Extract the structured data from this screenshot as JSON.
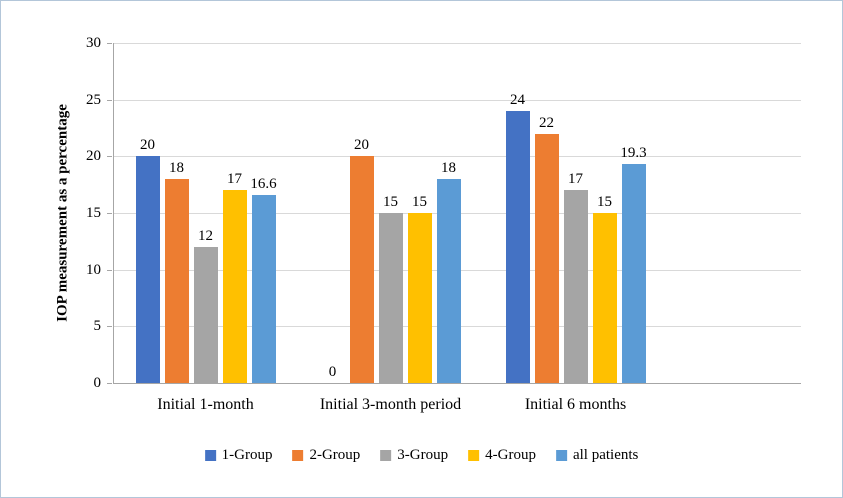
{
  "chart_data": {
    "type": "bar",
    "title": "",
    "xlabel": "",
    "ylabel": "IOP measurement as a percentage",
    "ylim": [
      0,
      30
    ],
    "yticks": [
      0,
      5,
      10,
      15,
      20,
      25,
      30
    ],
    "grid": true,
    "legend_position": "bottom",
    "categories": [
      "Initial 1-month",
      "Initial 3-month period",
      "Initial 6 months"
    ],
    "series": [
      {
        "name": "1-Group",
        "color": "#4472c4",
        "values": [
          20,
          0,
          24
        ]
      },
      {
        "name": "2-Group",
        "color": "#ed7d31",
        "values": [
          18,
          20,
          22
        ]
      },
      {
        "name": "3-Group",
        "color": "#a5a5a5",
        "values": [
          12,
          15,
          17
        ]
      },
      {
        "name": "4-Group",
        "color": "#ffc000",
        "values": [
          17,
          15,
          15
        ]
      },
      {
        "name": "all patients",
        "color": "#5b9bd5",
        "values": [
          16.6,
          18,
          19.3
        ]
      }
    ],
    "data_labels": [
      [
        "20",
        "0",
        "24"
      ],
      [
        "18",
        "20",
        "22"
      ],
      [
        "12",
        "15",
        "17"
      ],
      [
        "17",
        "15",
        "15"
      ],
      [
        "16.6",
        "18",
        "19.3"
      ]
    ]
  }
}
